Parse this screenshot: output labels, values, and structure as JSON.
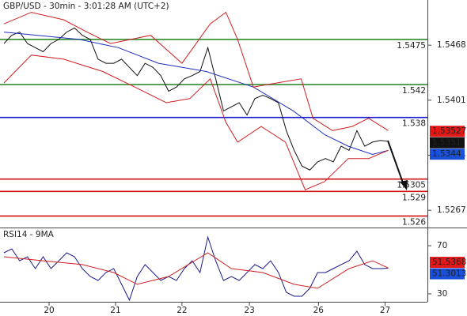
{
  "chart_data": [
    {
      "type": "line",
      "title": "GBP/USD - 30min - 3:01:28 AM (UTC+2)",
      "xlim": [
        -0.5,
        54.5
      ],
      "ylim": [
        1.5247,
        1.5523
      ],
      "yticks": [
        1.5468,
        1.5401,
        1.5334,
        1.5267
      ],
      "levels": [
        {
          "value": 1.5475,
          "color": "#2e8b2e"
        },
        {
          "value": 1.542,
          "color": "#2e8b2e"
        },
        {
          "value": 1.538,
          "color": "#1a1acc"
        },
        {
          "value": 1.5305,
          "color": "#d01010"
        },
        {
          "value": 1.529,
          "color": "#d01010"
        },
        {
          "value": 1.526,
          "color": "#d01010"
        }
      ],
      "markers": [
        {
          "value": 1.53527,
          "color": "#e01818"
        },
        {
          "value": 1.5351,
          "color": "#111111"
        },
        {
          "value": 1.5344,
          "color": "#1a4fd8"
        }
      ],
      "series": [
        {
          "color": "#111111",
          "x": [
            0,
            1,
            2,
            3,
            4,
            5,
            6,
            7,
            8,
            9,
            10,
            11,
            12,
            13,
            14,
            15,
            16,
            17,
            18,
            19,
            20,
            21,
            22,
            23,
            24,
            25,
            26,
            27,
            28,
            29,
            30,
            31,
            32,
            33,
            34,
            35,
            36,
            37,
            38,
            39,
            40,
            41,
            42,
            43,
            44,
            45,
            46,
            47,
            48,
            49
          ],
          "values": [
            1.547,
            1.548,
            1.5484,
            1.547,
            1.5465,
            1.546,
            1.547,
            1.5475,
            1.5484,
            1.5489,
            1.548,
            1.5475,
            1.5451,
            1.5446,
            1.5446,
            1.5451,
            1.5441,
            1.5431,
            1.5446,
            1.5441,
            1.5431,
            1.5412,
            1.5417,
            1.5427,
            1.5431,
            1.5436,
            1.5465,
            1.5427,
            1.5388,
            1.5393,
            1.5398,
            1.5383,
            1.5403,
            1.5407,
            1.5403,
            1.5398,
            1.5364,
            1.534,
            1.5321,
            1.5316,
            1.5326,
            1.533,
            1.5326,
            1.5345,
            1.534,
            1.5364,
            1.5345,
            1.535,
            1.5352,
            1.5351
          ]
        },
        {
          "color": "#2030c0",
          "x": [
            0,
            9.6,
            14.6,
            19.7,
            25.8,
            31.8,
            36.9,
            40.9,
            43.9,
            47,
            49
          ],
          "values": [
            1.5484,
            1.5475,
            1.5465,
            1.5446,
            1.5436,
            1.5417,
            1.5388,
            1.5359,
            1.5345,
            1.5335,
            1.534
          ]
        },
        {
          "color": "#d02020",
          "x": [
            0,
            3.5,
            7.6,
            10.6,
            13.6,
            18.7,
            22.7,
            26.3,
            28.3,
            29.8,
            31.8,
            34.8,
            37.9,
            39.4,
            41.9,
            44.4,
            46.5,
            49
          ],
          "values": [
            1.5494,
            1.5508,
            1.5499,
            1.5484,
            1.547,
            1.548,
            1.5446,
            1.5494,
            1.5508,
            1.5475,
            1.5417,
            1.5422,
            1.5427,
            1.5379,
            1.5364,
            1.5369,
            1.5379,
            1.5364
          ]
        },
        {
          "color": "#d02020",
          "x": [
            0,
            3.5,
            7.6,
            12.6,
            16.7,
            20.7,
            23.7,
            26.3,
            28.3,
            29.8,
            32.8,
            35.9,
            38.4,
            40.9,
            43.9,
            46.5,
            49
          ],
          "values": [
            1.5422,
            1.5456,
            1.5451,
            1.5436,
            1.5417,
            1.5398,
            1.5403,
            1.5427,
            1.5374,
            1.535,
            1.5369,
            1.535,
            1.5292,
            1.5302,
            1.533,
            1.533,
            1.534
          ]
        }
      ]
    },
    {
      "type": "line",
      "title": "RSI14 - 9MA",
      "xlim": [
        -0.5,
        54.5
      ],
      "ylim": [
        23.4,
        83.8
      ],
      "yticks": [
        70,
        30
      ],
      "xticks": [
        {
          "value": 5.76,
          "label": "20"
        },
        {
          "value": 14.23,
          "label": "21"
        },
        {
          "value": 22.7,
          "label": "22"
        },
        {
          "value": 31.3,
          "label": "23"
        },
        {
          "value": 40.1,
          "label": "26"
        },
        {
          "value": 48.6,
          "label": "27"
        }
      ],
      "markers": [
        {
          "value": 51.5368,
          "color": "#e01818"
        },
        {
          "value": 51.3013,
          "color": "#1a4fd8"
        }
      ],
      "series": [
        {
          "color": "#1a1a8a",
          "x": [
            0,
            1,
            2,
            3,
            4,
            5,
            6,
            7,
            8,
            9,
            10,
            11,
            12,
            13,
            14,
            15,
            16,
            17,
            18,
            19,
            20,
            21,
            22,
            23,
            24,
            25,
            26,
            27,
            28,
            29,
            30,
            31,
            32,
            33,
            34,
            35,
            36,
            37,
            38,
            39,
            40,
            41,
            42,
            43,
            44,
            45,
            46,
            47,
            48,
            49
          ],
          "values": [
            64.1,
            67.4,
            57.5,
            60.8,
            51.0,
            60.8,
            51.0,
            57.5,
            64.1,
            60.8,
            51.0,
            44.4,
            41.1,
            47.7,
            51.0,
            37.9,
            24.8,
            44.4,
            54.3,
            47.7,
            41.1,
            44.4,
            41.1,
            51.0,
            57.5,
            47.7,
            77.2,
            57.5,
            41.1,
            44.4,
            41.1,
            47.7,
            54.3,
            51.0,
            57.5,
            47.7,
            31.3,
            28.0,
            28.0,
            34.6,
            47.7,
            47.7,
            51.0,
            54.3,
            57.5,
            65.4,
            54.3,
            51.0,
            51.0,
            51.3
          ]
        },
        {
          "color": "#d02020",
          "x": [
            0,
            5,
            10,
            14,
            17,
            21,
            26,
            29,
            33,
            37,
            40,
            44,
            47,
            49
          ],
          "values": [
            60.8,
            57.5,
            54.3,
            47.7,
            37.9,
            44.4,
            64.1,
            51.0,
            47.7,
            37.9,
            34.6,
            51.0,
            57.5,
            51.5
          ]
        }
      ]
    }
  ]
}
